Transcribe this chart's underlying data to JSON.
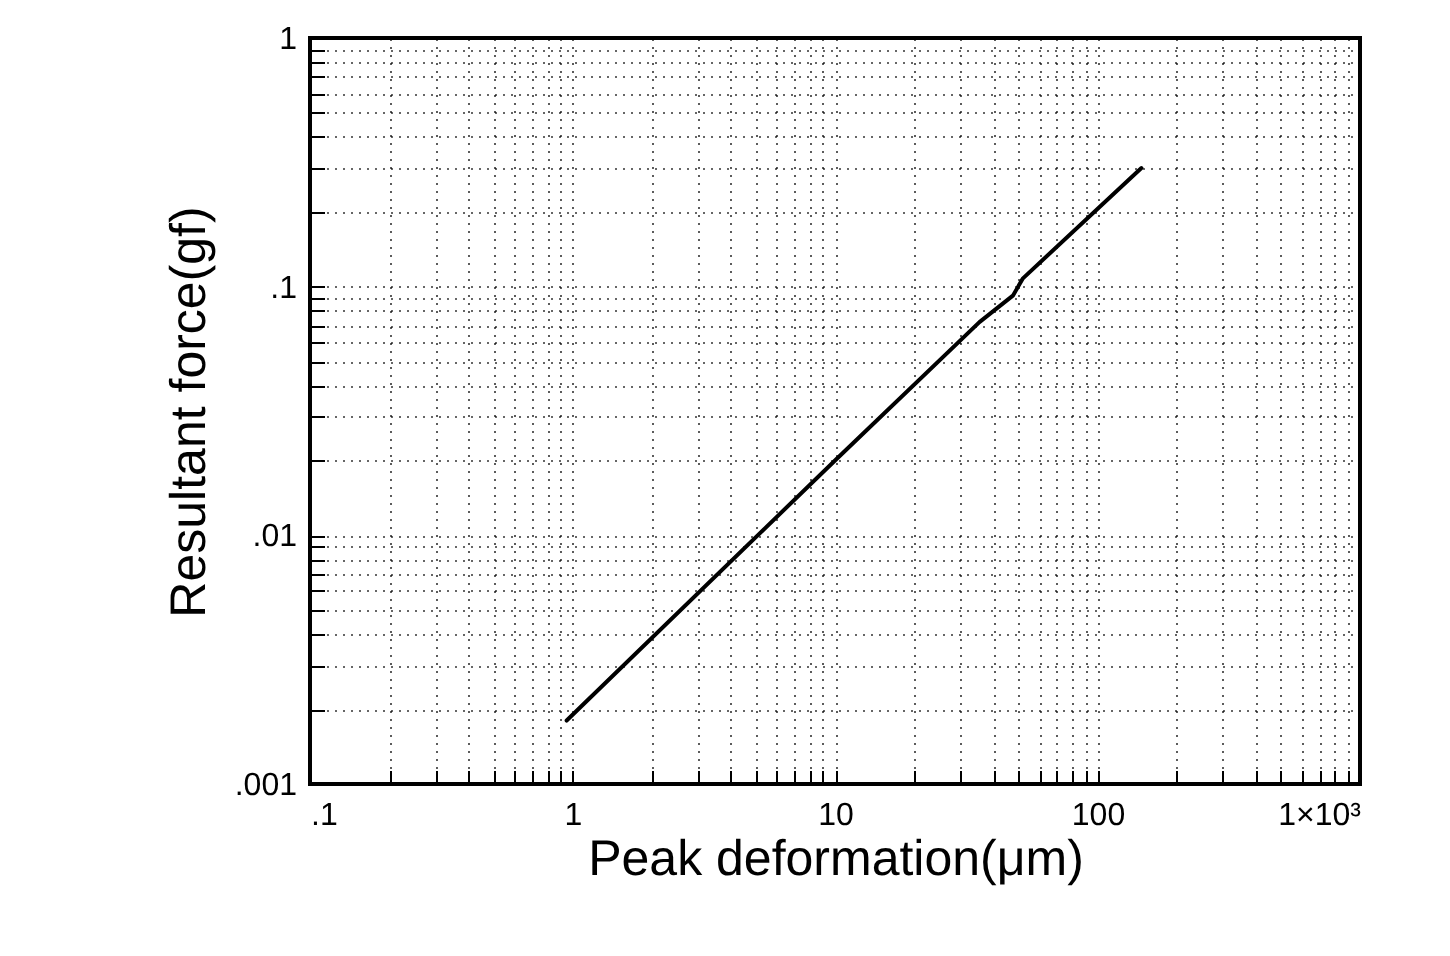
{
  "chart_data": {
    "type": "line",
    "xlabel": "Peak deformation(μm)",
    "ylabel": "Resultant force(gf)",
    "x": [
      0.95,
      10,
      35.5,
      47.6,
      52,
      147
    ],
    "series": [
      {
        "color": "#000000",
        "values": [
          0.0018,
          0.02,
          0.072,
          0.092,
          0.108,
          0.3
        ]
      }
    ],
    "log": "xy",
    "grid": true,
    "line_style": "solid",
    "marker": "none",
    "xlim": [
      0.1,
      1000
    ],
    "ylim": [
      0.001,
      1
    ],
    "xticks": [
      {
        "value": 0.1,
        "label": ".1"
      },
      {
        "value": 0.2,
        "label": null
      },
      {
        "value": 0.3,
        "label": null
      },
      {
        "value": 0.4,
        "label": null
      },
      {
        "value": 0.5,
        "label": null
      },
      {
        "value": 0.6,
        "label": null
      },
      {
        "value": 0.7,
        "label": null
      },
      {
        "value": 0.8,
        "label": null
      },
      {
        "value": 0.9,
        "label": null
      },
      1,
      {
        "value": 2,
        "label": null
      },
      {
        "value": 3,
        "label": null
      },
      {
        "value": 4,
        "label": null
      },
      {
        "value": 5,
        "label": null
      },
      {
        "value": 6,
        "label": null
      },
      {
        "value": 7,
        "label": null
      },
      {
        "value": 8,
        "label": null
      },
      {
        "value": 9,
        "label": null
      },
      10,
      {
        "value": 20,
        "label": null
      },
      {
        "value": 30,
        "label": null
      },
      {
        "value": 40,
        "label": null
      },
      {
        "value": 50,
        "label": null
      },
      {
        "value": 60,
        "label": null
      },
      {
        "value": 70,
        "label": null
      },
      {
        "value": 80,
        "label": null
      },
      {
        "value": 90,
        "label": null
      },
      100,
      {
        "value": 200,
        "label": null
      },
      {
        "value": 300,
        "label": null
      },
      {
        "value": 400,
        "label": null
      },
      {
        "value": 500,
        "label": null
      },
      {
        "value": 600,
        "label": null
      },
      {
        "value": 700,
        "label": null
      },
      {
        "value": 800,
        "label": null
      },
      {
        "value": 900,
        "label": null
      },
      {
        "value": 1000,
        "label": "1×10³"
      }
    ],
    "yticks": [
      {
        "value": 0.001,
        "label": ".001"
      },
      {
        "value": 0.002,
        "label": null
      },
      {
        "value": 0.003,
        "label": null
      },
      {
        "value": 0.004,
        "label": null
      },
      {
        "value": 0.005,
        "label": null
      },
      {
        "value": 0.006,
        "label": null
      },
      {
        "value": 0.007,
        "label": null
      },
      {
        "value": 0.008,
        "label": null
      },
      {
        "value": 0.009,
        "label": null
      },
      {
        "value": 0.01,
        "label": ".01"
      },
      {
        "value": 0.02,
        "label": null
      },
      {
        "value": 0.03,
        "label": null
      },
      {
        "value": 0.04,
        "label": null
      },
      {
        "value": 0.05,
        "label": null
      },
      {
        "value": 0.06,
        "label": null
      },
      {
        "value": 0.07,
        "label": null
      },
      {
        "value": 0.08,
        "label": null
      },
      {
        "value": 0.09,
        "label": null
      },
      {
        "value": 0.1,
        "label": ".1"
      },
      {
        "value": 0.2,
        "label": null
      },
      {
        "value": 0.3,
        "label": null
      },
      {
        "value": 0.4,
        "label": null
      },
      {
        "value": 0.5,
        "label": null
      },
      {
        "value": 0.6,
        "label": null
      },
      {
        "value": 0.7,
        "label": null
      },
      {
        "value": 0.8,
        "label": null
      },
      {
        "value": 0.9,
        "label": null
      },
      1
    ]
  }
}
